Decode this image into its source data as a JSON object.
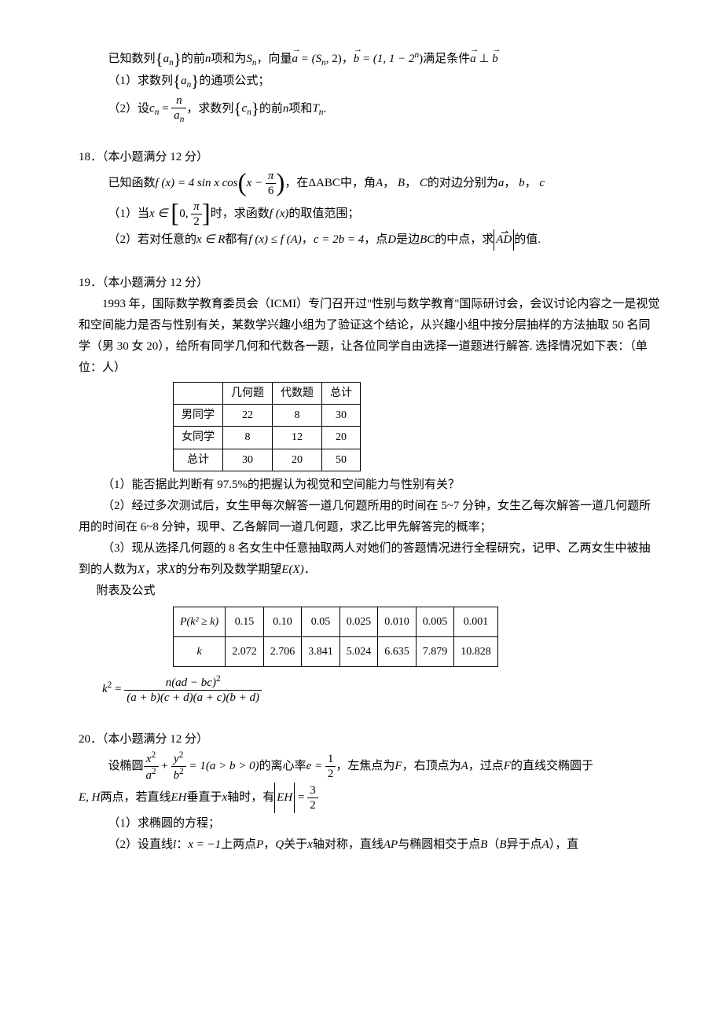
{
  "p17": {
    "line1_a": "已知数列",
    "line1_b": "的前",
    "line1_c": "项和为",
    "line1_d": "，向量",
    "line1_e": "，",
    "line1_f": "满足条件",
    "seq_an": "a",
    "sub_n": "n",
    "var_n": "n",
    "Sn": "S",
    "avec": "a",
    "eq_a": " = (S",
    "eq_a2": ", 2)",
    "bvec": "b",
    "eq_b": " = (1, 1 − 2",
    "eq_b2": ")",
    "perp": " ⊥ ",
    "q1": "（1）求数列",
    "q1b": "的通项公式；",
    "q2a": "（2）设",
    "cn": "c",
    "eq_cn": " = ",
    "frac_num": "n",
    "frac_den": "a",
    "q2b": "，求数列",
    "q2c": "的前",
    "q2d": "项和",
    "Tn": "T",
    "period": "."
  },
  "p18": {
    "header": "18．（本小题满分 12 分）",
    "line1a": "已知函数",
    "fx": "f (x) = 4 sin x cos",
    "line1b": "，在",
    "tri": "ΔABC",
    "line1c": "中，角",
    "A": "A",
    "B": "B",
    "C": "C",
    "line1d": "的对边分别为",
    "a": "a",
    "b": "b",
    "c": "c",
    "comma": "，",
    "pi6_num": "π",
    "pi6_den": "6",
    "x_minus": "x − ",
    "q1a": "（1）当",
    "xin": "x ∈ ",
    "zero": "0, ",
    "pi2_num": "π",
    "pi2_den": "2",
    "q1b": "时，求函数",
    "fxp": "f (x)",
    "q1c": "的取值范围；",
    "q2a": "（2）若对任意的",
    "xR": "x ∈ R",
    "q2b": "都有",
    "fxle": "f (x) ≤ f (A)",
    "q2c": "，",
    "c2b4": "c = 2b = 4",
    "q2d": "，点",
    "D": "D",
    "q2e": "是边",
    "BC": "BC",
    "q2f": "的中点，求",
    "AD": "AD",
    "q2g": "的值."
  },
  "p19": {
    "header": "19．（本小题满分 12 分）",
    "para1": "1993 年，国际数学教育委员会（ICMI）专门召开过\"性别与数学教育\"国际研讨会，会议讨论内容之一是视觉和空间能力是否与性别有关，某数学兴趣小组为了验证这个结论，从兴趣小组中按分层抽样的方法抽取 50 名同学（男 30 女 20），给所有同学几何和代数各一题，让各位同学自由选择一道题进行解答. 选择情况如下表：（单位：人）",
    "table1": {
      "headers": [
        "",
        "几何题",
        "代数题",
        "总计"
      ],
      "rows": [
        [
          "男同学",
          "22",
          "8",
          "30"
        ],
        [
          "女同学",
          "8",
          "12",
          "20"
        ],
        [
          "总计",
          "30",
          "20",
          "50"
        ]
      ]
    },
    "q1": "（1）能否据此判断有 97.5%的把握认为视觉和空间能力与性别有关？",
    "q2": "（2）经过多次测试后，女生甲每次解答一道几何题所用的时间在 5~7 分钟，女生乙每次解答一道几何题所用的时间在 6~8 分钟，现甲、乙各解同一道几何题，求乙比甲先解答完的概率；",
    "q3a": "（3）现从选择几何题的 8 名女生中任意抽取两人对她们的答题情况进行全程研究，记甲、乙两女生中被抽到的人数为",
    "X": "X",
    "q3b": "，求",
    "q3c": "的分布列及数学期望",
    "EX": "E(X)",
    "period": "．",
    "appendix": "附表及公式",
    "table2": {
      "row1_label": "P(k² ≥ k)",
      "row1": [
        "0.15",
        "0.10",
        "0.05",
        "0.025",
        "0.010",
        "0.005",
        "0.001"
      ],
      "row2_label": "k",
      "row2": [
        "2.072",
        "2.706",
        "3.841",
        "5.024",
        "6.635",
        "7.879",
        "10.828"
      ]
    },
    "formula_lhs": "k",
    "formula_sq": "2",
    "formula_eq": " = ",
    "formula_num": "n(ad − bc)",
    "formula_num_sup": "2",
    "formula_den": "(a + b)(c + d)(a + c)(b + d)"
  },
  "p20": {
    "header": "20．（本小题满分 12 分）",
    "line1a": "设椭圆",
    "ell_xa": "x",
    "ell_a": "a",
    "ell_yb": "y",
    "ell_b": "b",
    "two": "2",
    "plus": " + ",
    "eq1": " = 1(a > b > 0)",
    "line1b": "的离心率",
    "e_eq": "e = ",
    "half_num": "1",
    "half_den": "2",
    "line1c": "，左焦点为",
    "F": "F",
    "line1d": "，右顶点为",
    "A": "A",
    "line1e": "，过点",
    "line1f": "的直线交椭圆于",
    "line2a": "E, H",
    "line2b": "两点，若直线",
    "EH": "EH",
    "line2c": "垂直于",
    "xaxis": "x",
    "line2d": "轴时，有",
    "mod_EH": "EH",
    "eq32": " = ",
    "three_num": "3",
    "three_den": "2",
    "q1": "（1）求椭圆的方程；",
    "q2a": "（2）设直线",
    "l": "l",
    "colon": "：",
    "xm1": "x = −1",
    "q2b": "上两点",
    "P": "P",
    "Q": "Q",
    "q2c": "关于",
    "q2d": "轴对称，直线",
    "AP": "AP",
    "q2e": "与椭圆相交于点",
    "B": "B",
    "q2f": "（",
    "q2g": "异于点",
    "q2h": "），直"
  }
}
